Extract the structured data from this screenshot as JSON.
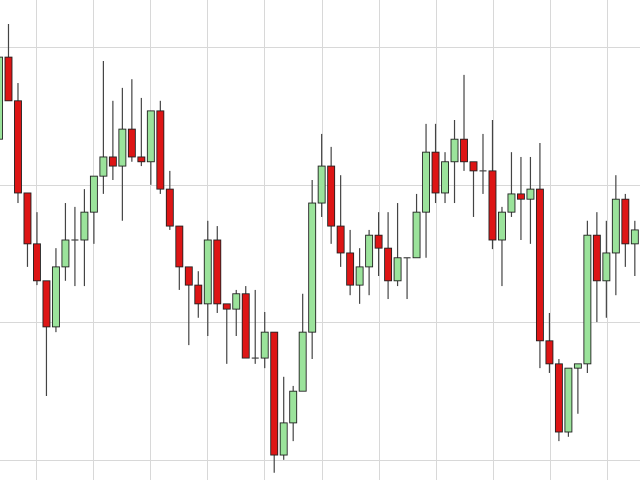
{
  "chart_data": {
    "type": "candlestick",
    "title": "",
    "xlabel": "",
    "ylabel": "",
    "ylim": [
      0,
      100
    ],
    "grid": true,
    "legend": "none",
    "colors": {
      "up": "#9be39b",
      "down": "#dd1515",
      "outline": "#222222",
      "wick": "#444444",
      "grid": "#d8d8d8"
    },
    "fields": [
      "open",
      "high",
      "low",
      "close"
    ],
    "candles": [
      [
        71.0,
        88.1,
        71.0,
        88.1
      ],
      [
        88.1,
        95.0,
        79.0,
        79.0
      ],
      [
        79.0,
        82.7,
        57.7,
        59.8
      ],
      [
        59.8,
        59.8,
        44.4,
        49.2
      ],
      [
        49.2,
        55.8,
        40.6,
        41.5
      ],
      [
        41.5,
        41.5,
        17.5,
        31.9
      ],
      [
        31.9,
        48.3,
        30.8,
        44.4
      ],
      [
        44.4,
        57.7,
        41.5,
        50.0
      ],
      [
        50.0,
        56.9,
        40.4,
        50.0
      ],
      [
        50.0,
        60.6,
        40.4,
        55.8
      ],
      [
        55.8,
        63.3,
        49.2,
        63.3
      ],
      [
        63.3,
        87.3,
        59.6,
        67.3
      ],
      [
        67.3,
        79.0,
        62.5,
        65.4
      ],
      [
        65.4,
        81.7,
        54.0,
        73.1
      ],
      [
        73.1,
        83.5,
        66.3,
        67.3
      ],
      [
        67.3,
        79.6,
        65.4,
        66.3
      ],
      [
        66.3,
        76.9,
        61.5,
        76.9
      ],
      [
        76.9,
        79.0,
        59.6,
        60.6
      ],
      [
        60.6,
        64.4,
        52.1,
        52.9
      ],
      [
        52.9,
        52.9,
        39.6,
        44.4
      ],
      [
        44.4,
        44.4,
        28.1,
        40.6
      ],
      [
        40.6,
        43.5,
        33.8,
        36.7
      ],
      [
        36.7,
        54.0,
        30.0,
        50.0
      ],
      [
        50.0,
        52.9,
        34.8,
        36.7
      ],
      [
        36.7,
        36.7,
        24.2,
        35.6
      ],
      [
        35.6,
        39.6,
        30.0,
        38.8
      ],
      [
        38.8,
        40.4,
        25.4,
        25.4
      ],
      [
        25.4,
        39.6,
        24.2,
        25.4
      ],
      [
        25.4,
        35.0,
        23.3,
        30.8
      ],
      [
        30.8,
        30.8,
        1.5,
        5.2
      ],
      [
        5.2,
        21.5,
        4.2,
        11.9
      ],
      [
        11.9,
        19.6,
        8.1,
        18.5
      ],
      [
        18.5,
        38.8,
        18.5,
        30.8
      ],
      [
        30.8,
        62.5,
        25.2,
        57.7
      ],
      [
        57.7,
        72.1,
        54.8,
        65.4
      ],
      [
        65.4,
        69.4,
        49.2,
        52.9
      ],
      [
        52.9,
        63.5,
        44.4,
        47.3
      ],
      [
        47.3,
        52.1,
        38.5,
        40.6
      ],
      [
        40.6,
        48.3,
        36.7,
        44.4
      ],
      [
        44.4,
        52.1,
        38.5,
        51.0
      ],
      [
        51.0,
        55.8,
        42.5,
        48.3
      ],
      [
        48.3,
        55.8,
        37.7,
        41.5
      ],
      [
        41.5,
        57.7,
        40.4,
        46.3
      ],
      [
        46.3,
        46.3,
        37.7,
        46.3
      ],
      [
        46.3,
        59.6,
        46.3,
        55.8
      ],
      [
        55.8,
        74.2,
        46.3,
        68.3
      ],
      [
        68.3,
        74.2,
        57.7,
        59.8
      ],
      [
        59.8,
        68.3,
        57.7,
        66.3
      ],
      [
        66.3,
        75.0,
        57.7,
        71.0
      ],
      [
        71.0,
        84.4,
        64.4,
        66.3
      ],
      [
        66.3,
        66.3,
        54.8,
        64.4
      ],
      [
        64.4,
        72.1,
        59.6,
        64.4
      ],
      [
        64.4,
        75.0,
        48.1,
        50.0
      ],
      [
        50.0,
        56.9,
        40.4,
        55.8
      ],
      [
        55.8,
        68.3,
        54.8,
        59.6
      ],
      [
        59.6,
        67.3,
        50.0,
        58.5
      ],
      [
        58.5,
        67.3,
        49.2,
        60.6
      ],
      [
        60.6,
        70.2,
        23.3,
        29.0
      ],
      [
        29.0,
        34.8,
        22.3,
        24.2
      ],
      [
        24.2,
        25.2,
        8.1,
        10.0
      ],
      [
        10.0,
        23.3,
        9.0,
        23.3
      ],
      [
        23.3,
        24.2,
        13.8,
        24.2
      ],
      [
        24.2,
        54.0,
        22.3,
        51.0
      ],
      [
        51.0,
        55.8,
        32.9,
        41.5
      ],
      [
        41.5,
        54.0,
        33.8,
        47.3
      ],
      [
        47.3,
        63.5,
        38.5,
        58.5
      ],
      [
        58.5,
        59.6,
        44.4,
        49.2
      ],
      [
        49.2,
        54.0,
        42.5,
        52.1
      ]
    ]
  }
}
